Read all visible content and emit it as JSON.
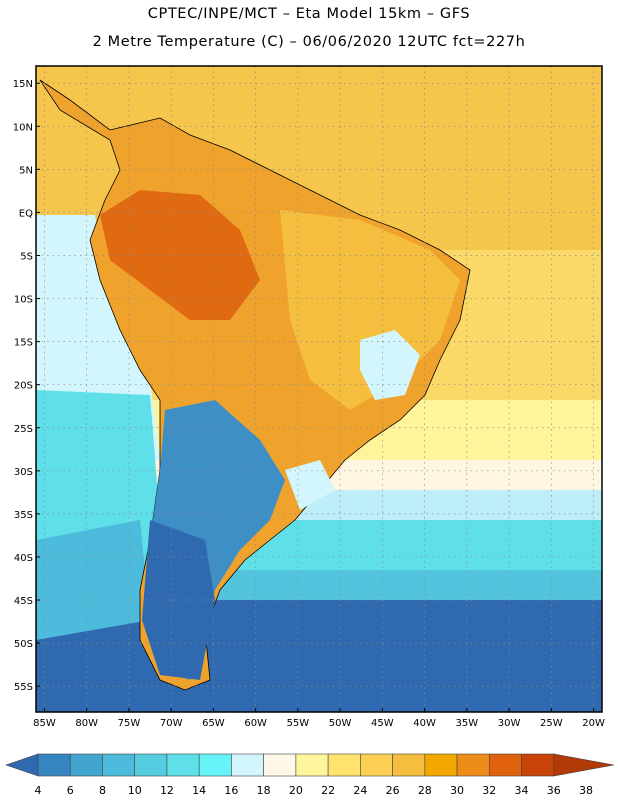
{
  "header": {
    "title_line1": "CPTEC/INPE/MCT –  Eta Model 15km – GFS",
    "title_line2": "2 Metre Temperature (C) – 06/06/2020 12UTC fct=227h"
  },
  "map": {
    "lat_labels": [
      "15N",
      "10N",
      "5N",
      "EQ",
      "5S",
      "10S",
      "15S",
      "20S",
      "25S",
      "30S",
      "35S",
      "40S",
      "45S",
      "50S",
      "55S"
    ],
    "lat_values": [
      15,
      10,
      5,
      0,
      -5,
      -10,
      -15,
      -20,
      -25,
      -30,
      -35,
      -40,
      -45,
      -50,
      -55
    ],
    "lon_labels": [
      "85W",
      "80W",
      "75W",
      "70W",
      "65W",
      "60W",
      "55W",
      "50W",
      "45W",
      "40W",
      "35W",
      "30W",
      "25W",
      "20W"
    ],
    "lon_values": [
      -85,
      -80,
      -75,
      -70,
      -65,
      -60,
      -55,
      -50,
      -45,
      -40,
      -35,
      -30,
      -25,
      -20
    ],
    "lon_range": [
      -86,
      -19
    ],
    "lat_range": [
      -58,
      17
    ]
  },
  "colorbar": {
    "labels": [
      "4",
      "6",
      "8",
      "10",
      "12",
      "14",
      "16",
      "18",
      "20",
      "22",
      "24",
      "26",
      "28",
      "30",
      "32",
      "34",
      "36",
      "38"
    ],
    "colors": [
      "#2f6ab0",
      "#3585c1",
      "#41a5d0",
      "#4dbcdc",
      "#55ccdf",
      "#5fe0e8",
      "#67f4f8",
      "#d2f6fc",
      "#fff8e6",
      "#fff59d",
      "#ffe36e",
      "#fdd055",
      "#f6be3e",
      "#f2a800",
      "#ee8c1a",
      "#e0620f",
      "#c94308",
      "#b23a06"
    ]
  }
}
